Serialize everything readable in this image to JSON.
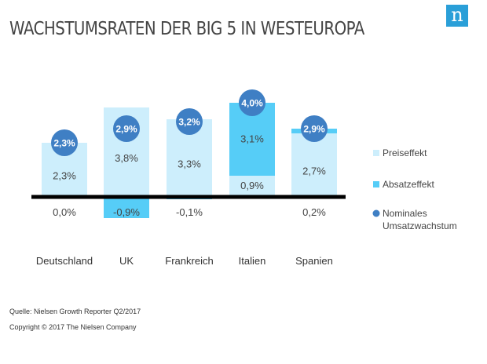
{
  "header": {
    "title": "WACHSTUMSRATEN DER BIG 5 IN WESTEUROPA",
    "logo": "n"
  },
  "footer": {
    "source": "Quelle: Nielsen Growth Reporter Q2/2017",
    "copyright": "Copyright © 2017 The Nielsen Company"
  },
  "chart_data": {
    "type": "bar",
    "stacked": true,
    "categories": [
      "Deutschland",
      "UK",
      "Frankreich",
      "Italien",
      "Spanien"
    ],
    "series": [
      {
        "name": "Preiseffekt",
        "values": [
          2.3,
          3.8,
          3.3,
          0.9,
          2.7
        ],
        "labels": [
          "2,3%",
          "3,8%",
          "3,3%",
          "0,9%",
          "2,7%"
        ],
        "color": "#cdeefc"
      },
      {
        "name": "Absatzeffekt",
        "values": [
          0.0,
          -0.9,
          -0.1,
          3.1,
          0.2
        ],
        "labels": [
          "0,0%",
          "-0,9%",
          "-0,1%",
          "3,1%",
          "0,2%"
        ],
        "color": "#56cdf7"
      },
      {
        "name": "Nominales Umsatzwachstum",
        "values": [
          2.3,
          2.9,
          3.2,
          4.0,
          2.9
        ],
        "labels": [
          "2,3%",
          "2,9%",
          "3,2%",
          "4,0%",
          "2,9%"
        ],
        "color": "#3f7fc4",
        "marker": "circle"
      }
    ],
    "legend": {
      "position": "right",
      "items": [
        "Preiseffekt",
        "Absatzeffekt",
        "Nominales",
        "Umsatzwachstum"
      ]
    },
    "grid": false
  }
}
